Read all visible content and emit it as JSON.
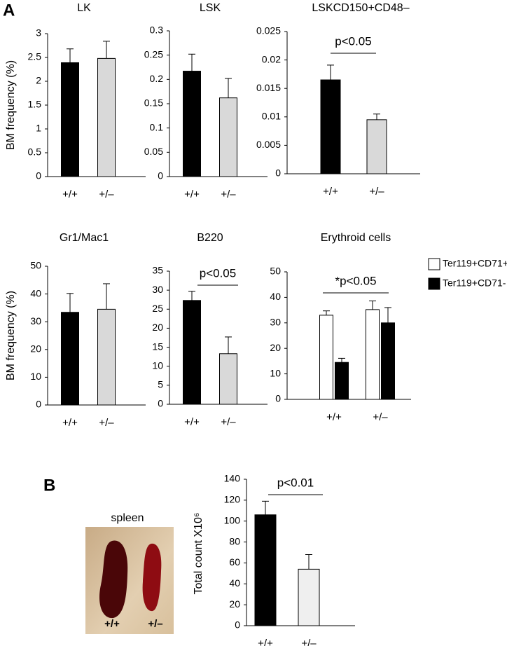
{
  "panel_labels": [
    "A",
    "B"
  ],
  "photo": {
    "title": "spleen",
    "labels": [
      "+/+",
      "+/–"
    ]
  },
  "chart_data": [
    {
      "type": "bar",
      "title": "LK",
      "y_label": "BM frequency (%)",
      "categories": [
        "+/+",
        "+/–"
      ],
      "series": [
        {
          "values": [
            2.39,
            2.48
          ],
          "errors": [
            0.29,
            0.36
          ],
          "colors": [
            "#000000",
            "#d9d9d9"
          ]
        }
      ],
      "ylim": [
        0,
        3
      ],
      "yticks": [
        0,
        0.5,
        1,
        1.5,
        2,
        2.5,
        3
      ]
    },
    {
      "type": "bar",
      "title": "LSK",
      "categories": [
        "+/+",
        "+/–"
      ],
      "series": [
        {
          "values": [
            0.217,
            0.162
          ],
          "errors": [
            0.035,
            0.04
          ],
          "colors": [
            "#000000",
            "#d9d9d9"
          ]
        }
      ],
      "ylim": [
        0,
        0.3
      ],
      "yticks": [
        0,
        0.05,
        0.1,
        0.15,
        0.2,
        0.25,
        0.3
      ]
    },
    {
      "type": "bar",
      "title": "LSKCD150+CD48–",
      "categories": [
        "+/+",
        "+/–"
      ],
      "series": [
        {
          "values": [
            0.0165,
            0.0095
          ],
          "errors": [
            0.0026,
            0.001
          ],
          "colors": [
            "#000000",
            "#d9d9d9"
          ]
        }
      ],
      "ylim": [
        0,
        0.025
      ],
      "yticks": [
        0,
        0.005,
        0.01,
        0.015,
        0.02,
        0.025
      ],
      "annotation": "p<0.05"
    },
    {
      "type": "bar",
      "title": "Gr1/Mac1",
      "y_label": "BM frequency (%)",
      "categories": [
        "+/+",
        "+/–"
      ],
      "series": [
        {
          "values": [
            33.4,
            34.5
          ],
          "errors": [
            6.8,
            9.2
          ],
          "colors": [
            "#000000",
            "#d9d9d9"
          ]
        }
      ],
      "ylim": [
        0,
        50
      ],
      "yticks": [
        0,
        10,
        20,
        30,
        40,
        50
      ]
    },
    {
      "type": "bar",
      "title": "B220",
      "categories": [
        "+/+",
        "+/–"
      ],
      "series": [
        {
          "values": [
            27.3,
            13.3
          ],
          "errors": [
            2.4,
            4.4
          ],
          "colors": [
            "#000000",
            "#d9d9d9"
          ]
        }
      ],
      "ylim": [
        0,
        35
      ],
      "yticks": [
        0,
        5,
        10,
        15,
        20,
        25,
        30,
        35
      ],
      "annotation": "p<0.05"
    },
    {
      "type": "grouped_bar",
      "title": "Erythroid cells",
      "categories": [
        "+/+",
        "+/–"
      ],
      "series": [
        {
          "name": "Ter119+CD71+",
          "color": "#ffffff",
          "values": [
            33,
            35.2
          ],
          "errors": [
            1.7,
            3.4
          ]
        },
        {
          "name": "Ter119+CD71-",
          "color": "#000000",
          "values": [
            14.5,
            30
          ],
          "errors": [
            1.6,
            6
          ]
        }
      ],
      "ylim": [
        0,
        50
      ],
      "yticks": [
        0,
        10,
        20,
        30,
        40,
        50
      ],
      "annotation": "*p<0.05",
      "legend": "outside-right"
    },
    {
      "type": "bar",
      "y_label": "Total count X10⁶",
      "categories": [
        "+/+",
        "+/–"
      ],
      "series": [
        {
          "values": [
            106,
            54
          ],
          "errors": [
            13,
            14
          ],
          "colors": [
            "#000000",
            "#efefef"
          ]
        }
      ],
      "ylim": [
        0,
        140
      ],
      "yticks": [
        0,
        20,
        40,
        60,
        80,
        100,
        120,
        140
      ],
      "annotation": "p<0.01"
    }
  ]
}
